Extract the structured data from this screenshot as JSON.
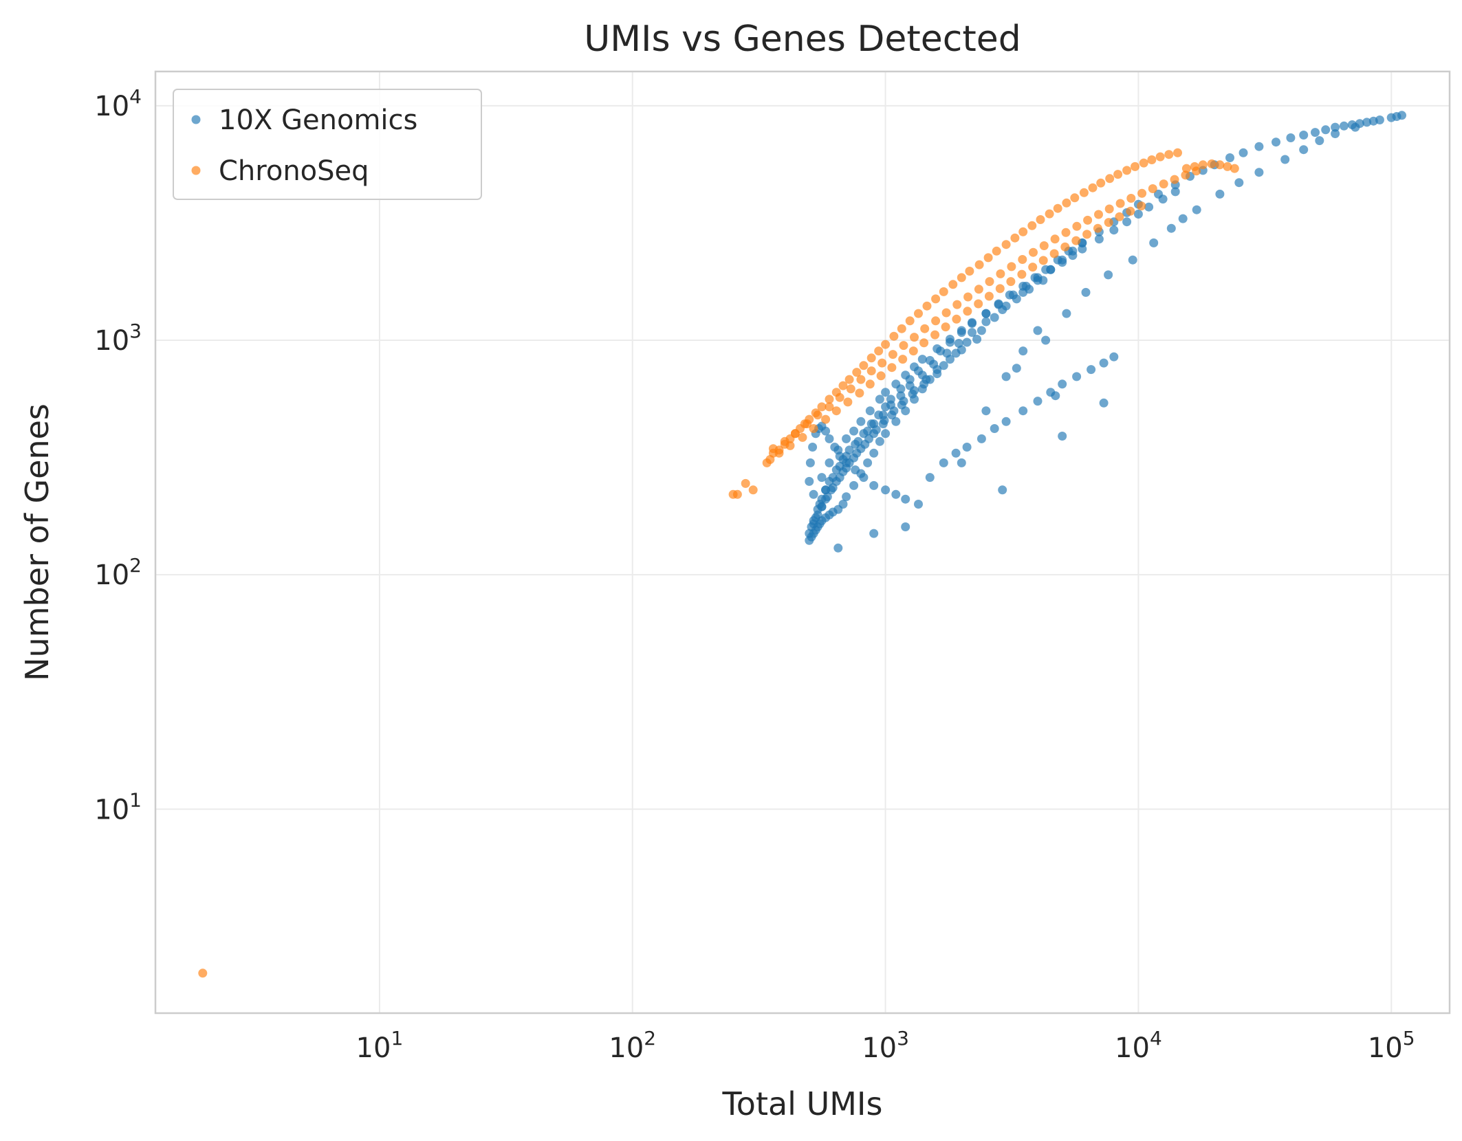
{
  "chart_data": {
    "type": "scatter",
    "title": "UMIs vs Genes Detected",
    "xlabel": "Total UMIs",
    "ylabel": "Number of Genes",
    "xscale": "log",
    "yscale": "log",
    "xlim": [
      1.3,
      170000
    ],
    "ylim": [
      1.35,
      14000
    ],
    "grid": true,
    "legend_position": "top-left",
    "x_ticks": [
      {
        "value": 10,
        "base": "10",
        "exp": "1"
      },
      {
        "value": 100,
        "base": "10",
        "exp": "2"
      },
      {
        "value": 1000,
        "base": "10",
        "exp": "3"
      },
      {
        "value": 10000,
        "base": "10",
        "exp": "4"
      },
      {
        "value": 100000,
        "base": "10",
        "exp": "5"
      }
    ],
    "y_ticks": [
      {
        "value": 10,
        "base": "10",
        "exp": "1"
      },
      {
        "value": 100,
        "base": "10",
        "exp": "2"
      },
      {
        "value": 1000,
        "base": "10",
        "exp": "3"
      },
      {
        "value": 10000,
        "base": "10",
        "exp": "4"
      }
    ],
    "series": [
      {
        "name": "10X Genomics",
        "color": "#1f77b4",
        "x": [
          500,
          510,
          520,
          530,
          540,
          550,
          560,
          580,
          600,
          620,
          650,
          680,
          700,
          750,
          800,
          850,
          900,
          950,
          1000,
          1100,
          1200,
          1300,
          1400,
          1500,
          1700,
          1900,
          2100,
          2400,
          2700,
          3000,
          3500,
          4000,
          4500,
          5000,
          5500,
          6000,
          7000,
          8000,
          9000,
          10000,
          12000,
          14000,
          16000,
          18000,
          20000,
          23000,
          26000,
          30000,
          35000,
          40000,
          45000,
          50000,
          55000,
          60000,
          65000,
          70000,
          75000,
          80000,
          90000,
          100000,
          105000,
          110000,
          520,
          560,
          600,
          650,
          700,
          750,
          800,
          870,
          950,
          1000,
          1100,
          1200,
          1300,
          1400,
          1600,
          1800,
          2000,
          2200,
          2500,
          2800,
          3200,
          3600,
          4000,
          4500,
          5000,
          5500,
          6000,
          7000,
          8000,
          9000,
          10000,
          11000,
          12500,
          14000,
          550,
          580,
          620,
          660,
          700,
          760,
          820,
          880,
          940,
          1000,
          1050,
          1150,
          1250,
          1350,
          1500,
          1650,
          1800,
          2000,
          2200,
          2500,
          2800,
          3100,
          3500,
          3900,
          4300,
          4800,
          5300,
          6000,
          520,
          540,
          560,
          580,
          600,
          640,
          680,
          720,
          780,
          850,
          900,
          980,
          1050,
          1150,
          1250,
          1400,
          1550,
          1750,
          1950,
          2200,
          2500,
          2900,
          3300,
          3700,
          4200,
          510,
          530,
          560,
          590,
          620,
          660,
          700,
          750,
          800,
          860,
          920,
          990,
          1080,
          1180,
          1300,
          1450,
          1600,
          1800,
          2000,
          2300,
          500,
          520,
          540,
          560,
          580,
          610,
          640,
          680,
          720,
          770,
          830,
          900,
          980,
          1060,
          1160,
          1280,
          1420,
          1600,
          500,
          505,
          515,
          530,
          545,
          560,
          580,
          600,
          630,
          660,
          700,
          760,
          820,
          900,
          1000,
          1100,
          1200,
          1350,
          1500,
          1700,
          1900,
          2100,
          2400,
          2700,
          3000,
          3500,
          4000,
          4500,
          5000,
          5700,
          6500,
          7300,
          8000,
          650,
          900,
          1200,
          2900,
          7300,
          5000,
          4700,
          4000,
          3500,
          3000,
          2500,
          2000,
          3300,
          4300,
          5200,
          6200,
          7600,
          9500,
          11500,
          13500,
          15000,
          17000,
          21000,
          25000,
          30000,
          38000,
          45000,
          52000,
          60000,
          72000,
          85000
        ],
        "y": [
          140,
          145,
          150,
          155,
          160,
          165,
          170,
          175,
          180,
          185,
          190,
          200,
          215,
          240,
          270,
          300,
          330,
          370,
          400,
          450,
          500,
          560,
          620,
          680,
          780,
          880,
          980,
          1100,
          1250,
          1400,
          1600,
          1800,
          2000,
          2200,
          2400,
          2600,
          2900,
          3200,
          3500,
          3800,
          4200,
          4600,
          5000,
          5300,
          5600,
          6000,
          6300,
          6700,
          7000,
          7300,
          7500,
          7700,
          7900,
          8100,
          8200,
          8300,
          8400,
          8500,
          8700,
          8900,
          9000,
          9100,
          220,
          260,
          300,
          340,
          380,
          410,
          450,
          500,
          560,
          600,
          650,
          710,
          770,
          830,
          920,
          1010,
          1100,
          1190,
          1300,
          1420,
          1560,
          1700,
          1850,
          2000,
          2150,
          2300,
          2450,
          2700,
          2950,
          3200,
          3450,
          3700,
          4000,
          4300,
          200,
          230,
          260,
          290,
          320,
          360,
          400,
          440,
          480,
          520,
          560,
          620,
          680,
          740,
          820,
          900,
          980,
          1080,
          1180,
          1300,
          1430,
          1560,
          1700,
          1850,
          2000,
          2200,
          2400,
          2600,
          170,
          190,
          210,
          230,
          250,
          280,
          310,
          340,
          370,
          410,
          440,
          480,
          530,
          580,
          640,
          710,
          790,
          880,
          970,
          1080,
          1200,
          1350,
          1500,
          1650,
          1800,
          160,
          175,
          195,
          215,
          235,
          260,
          285,
          315,
          345,
          380,
          415,
          455,
          500,
          550,
          610,
          680,
          750,
          830,
          910,
          1010,
          150,
          165,
          180,
          195,
          210,
          230,
          250,
          275,
          300,
          330,
          360,
          400,
          440,
          480,
          530,
          590,
          650,
          720,
          250,
          300,
          350,
          400,
          420,
          430,
          410,
          380,
          350,
          320,
          300,
          280,
          260,
          240,
          230,
          220,
          210,
          200,
          260,
          300,
          330,
          350,
          380,
          420,
          450,
          500,
          550,
          600,
          650,
          700,
          750,
          800,
          850,
          130,
          150,
          160,
          230,
          540,
          390,
          580,
          1100,
          900,
          700,
          500,
          300,
          760,
          1000,
          1300,
          1600,
          1900,
          2200,
          2600,
          3000,
          3300,
          3600,
          4200,
          4700,
          5200,
          5900,
          6500,
          7100,
          7600,
          8100,
          8600
        ]
      },
      {
        "name": "ChronoSeq",
        "color": "#ff7f0e",
        "x": [
          2,
          250,
          260,
          280,
          300,
          340,
          350,
          360,
          380,
          400,
          420,
          440,
          460,
          480,
          500,
          530,
          560,
          600,
          640,
          680,
          720,
          770,
          820,
          880,
          940,
          1000,
          1080,
          1160,
          1250,
          1350,
          1460,
          1580,
          1700,
          1850,
          2000,
          2150,
          2350,
          2550,
          2750,
          3000,
          3250,
          3500,
          3800,
          4100,
          4450,
          4800,
          5200,
          5600,
          6100,
          6600,
          7100,
          7700,
          8300,
          9000,
          9700,
          10500,
          11300,
          12200,
          13200,
          14300,
          15500,
          16700,
          18000,
          19500,
          21000,
          22500,
          24000,
          360,
          400,
          440,
          490,
          540,
          600,
          660,
          730,
          800,
          880,
          970,
          1070,
          1180,
          1300,
          1430,
          1580,
          1740,
          1920,
          2120,
          2340,
          2580,
          2850,
          3150,
          3480,
          3840,
          4240,
          4680,
          5170,
          5710,
          6300,
          6960,
          7680,
          8480,
          9360,
          10330,
          11400,
          12590,
          13900,
          15350,
          16950,
          380,
          420,
          470,
          520,
          580,
          640,
          710,
          790,
          870,
          960,
          1060,
          1170,
          1290,
          1420,
          1570,
          1730,
          1910,
          2110,
          2330,
          2570,
          2840,
          3130,
          3460,
          3820,
          4210,
          4650,
          5130,
          5670,
          6260,
          6910,
          7630,
          8420,
          9300,
          10270
        ],
        "y": [
          2,
          220,
          220,
          245,
          230,
          300,
          310,
          330,
          340,
          360,
          380,
          400,
          420,
          440,
          460,
          490,
          520,
          560,
          600,
          640,
          680,
          730,
          780,
          840,
          900,
          960,
          1040,
          1120,
          1210,
          1300,
          1400,
          1500,
          1610,
          1730,
          1850,
          1970,
          2100,
          2250,
          2400,
          2560,
          2730,
          2900,
          3080,
          3270,
          3460,
          3650,
          3850,
          4050,
          4260,
          4470,
          4680,
          4890,
          5100,
          5300,
          5500,
          5700,
          5880,
          6060,
          6200,
          6300,
          5400,
          5500,
          5600,
          5650,
          5600,
          5500,
          5400,
          345,
          370,
          400,
          440,
          480,
          520,
          570,
          620,
          680,
          740,
          800,
          870,
          950,
          1030,
          1120,
          1210,
          1310,
          1420,
          1530,
          1650,
          1780,
          1920,
          2060,
          2210,
          2370,
          2530,
          2700,
          2880,
          3060,
          3250,
          3440,
          3630,
          3830,
          4030,
          4230,
          4430,
          4640,
          4850,
          5060,
          5270,
          330,
          355,
          385,
          420,
          460,
          500,
          545,
          595,
          650,
          705,
          765,
          830,
          900,
          975,
          1055,
          1140,
          1230,
          1330,
          1430,
          1540,
          1660,
          1780,
          1910,
          2050,
          2190,
          2340,
          2500,
          2660,
          2830,
          3000,
          3180,
          3360,
          3550,
          3740
        ]
      }
    ]
  }
}
